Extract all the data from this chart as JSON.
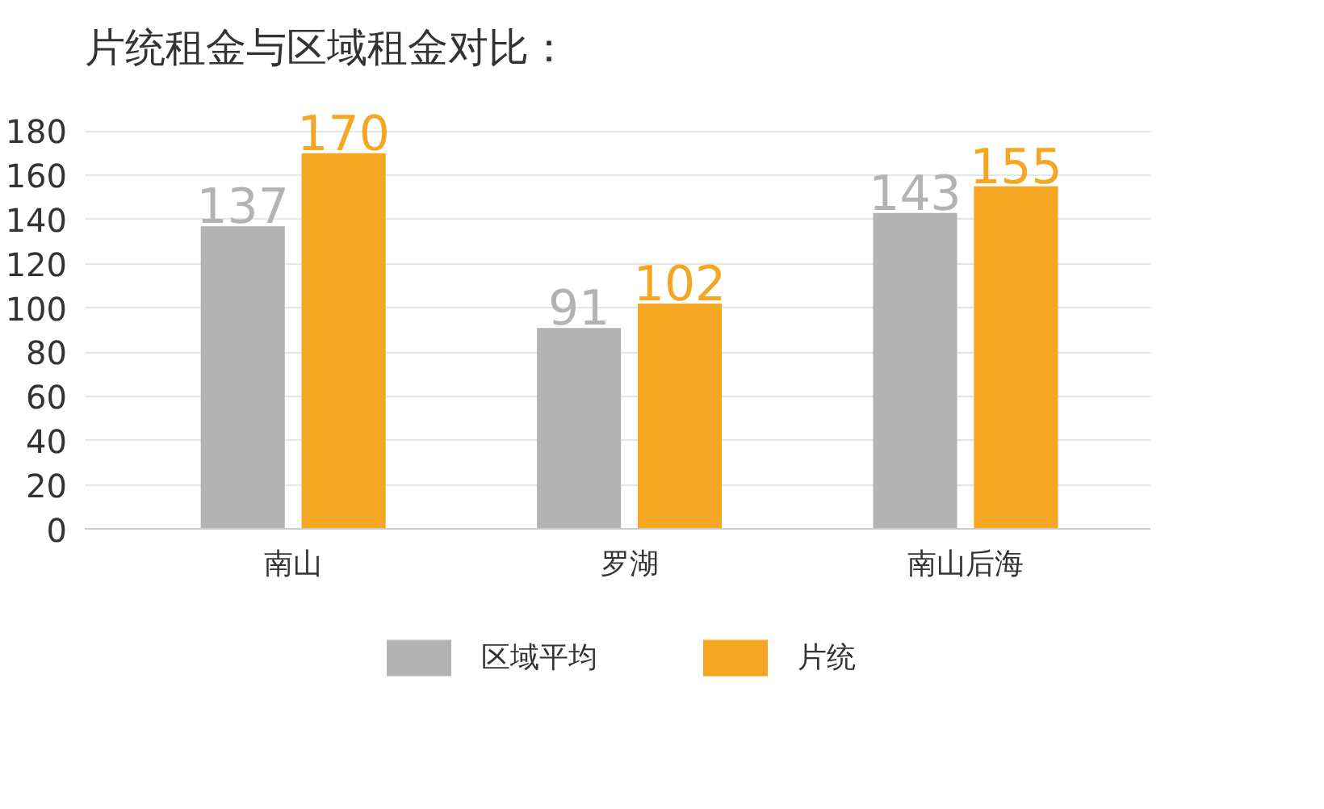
{
  "chart_data": {
    "type": "bar",
    "title": "片统租金与区域租金对比：",
    "categories": [
      "南山",
      "罗湖",
      "南山后海"
    ],
    "series": [
      {
        "name": "区域平均",
        "color": "#b3b3b3",
        "values": [
          137,
          91,
          143
        ]
      },
      {
        "name": "片统",
        "color": "#f5a623",
        "values": [
          170,
          102,
          155
        ]
      }
    ],
    "ylim": [
      0,
      180
    ],
    "yticks": [
      0,
      20,
      40,
      60,
      80,
      100,
      120,
      140,
      160,
      180
    ],
    "grid": "y",
    "legend": "bottom",
    "data_labels": true
  }
}
